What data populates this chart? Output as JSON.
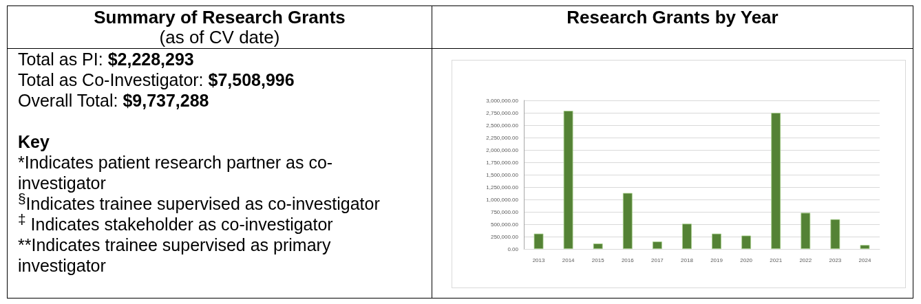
{
  "chart_data": [
    {
      "type": "other",
      "title": "Summary of Research Grants",
      "subtitle": "(as of CV date)",
      "annotations": [
        "Total as PI: $2,228,293",
        "Total as Co-Investigator: $7,508,996",
        "Overall Total: $9,737,288",
        "Key",
        "*Indicates patient research partner as co-investigator",
        "$^{§}$Indicates trainee supervised as co-investigator",
        "$^{‡}$ Indicates stakeholder as co-investigator",
        "**Indicates trainee supervised as primary investigator"
      ]
    },
    {
      "type": "bar",
      "title": "Research Grants by Year",
      "categories": [
        "2013",
        "2014",
        "2015",
        "2016",
        "2017",
        "2018",
        "2019",
        "2020",
        "2021",
        "2022",
        "2023",
        "2024"
      ],
      "values": [
        310000,
        2790000,
        110000,
        1130000,
        150000,
        510000,
        310000,
        270000,
        2750000,
        730000,
        600000,
        80000
      ],
      "color": "#548235",
      "ylim": [
        0,
        3000000
      ],
      "yticks": [
        {
          "value": 0,
          "label": "0.00"
        },
        {
          "value": 250000,
          "label": "250,000.00"
        },
        {
          "value": 500000,
          "label": "500,000.00"
        },
        {
          "value": 750000,
          "label": "750,000.00"
        },
        {
          "value": 1000000,
          "label": "1,000,000.00"
        },
        {
          "value": 1250000,
          "label": "1,250,000.00"
        },
        {
          "value": 1500000,
          "label": "1,500,000.00"
        },
        {
          "value": 1750000,
          "label": "1,750,000.00"
        },
        {
          "value": 2000000,
          "label": "2,000,000.00"
        },
        {
          "value": 2250000,
          "label": "2,250,000.00"
        },
        {
          "value": 2500000,
          "label": "2,500,000.00"
        },
        {
          "value": 2750000,
          "label": "2,750,000.00"
        },
        {
          "value": 3000000,
          "label": "3,000,000.00"
        }
      ],
      "grid": "y"
    }
  ]
}
